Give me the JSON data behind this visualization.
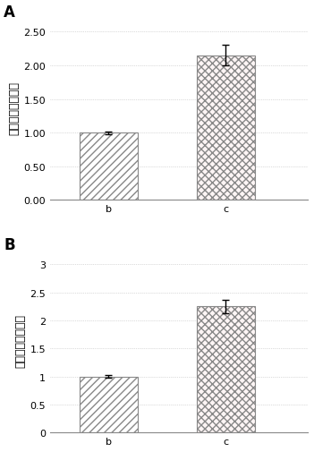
{
  "panel_A": {
    "label": "A",
    "categories": [
      "b",
      "c"
    ],
    "values": [
      1.0,
      2.15
    ],
    "errors": [
      0.02,
      0.15
    ],
    "ylim": [
      0,
      2.75
    ],
    "yticks": [
      0.0,
      0.5,
      1.0,
      1.5,
      2.0,
      2.5
    ],
    "ytick_labels": [
      "0.00",
      "0.50",
      "1.00",
      "1.50",
      "2.00",
      "2.50"
    ]
  },
  "panel_B": {
    "label": "B",
    "categories": [
      "b",
      "c"
    ],
    "values": [
      1.0,
      2.25
    ],
    "errors": [
      0.02,
      0.12
    ],
    "ylim": [
      0,
      3.3
    ],
    "yticks": [
      0,
      0.5,
      1.0,
      1.5,
      2.0,
      2.5,
      3.0
    ],
    "ytick_labels": [
      "0",
      "0.5",
      "1",
      "1.5",
      "2",
      "2.5",
      "3"
    ]
  },
  "ylabel": "柔红霉素摄取比率",
  "bar_width": 0.5,
  "background_color": "#ffffff",
  "hatch_b": "////",
  "hatch_c": "xxxx",
  "color_b_face": "#ffffff",
  "color_b_edge": "#888888",
  "color_c_face": "#ffffff",
  "color_c_edge": "#888888",
  "label_fontsize": 12,
  "tick_fontsize": 8,
  "ylabel_fontsize": 9
}
